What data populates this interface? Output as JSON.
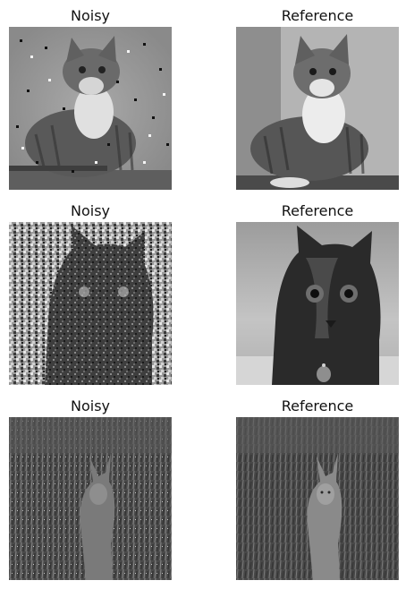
{
  "panels": [
    {
      "title": "Noisy",
      "image": "noisy-kitten-photo",
      "subject": "grey tabby kitten with white chest sitting on a ledge, salt-and-pepper noise"
    },
    {
      "title": "Reference",
      "image": "reference-kitten-photo",
      "subject": "grey tabby kitten with white chest sitting on a ledge"
    },
    {
      "title": "Noisy",
      "image": "noisy-black-cat-photo",
      "subject": "dark cat face close-up, heavy speckle noise"
    },
    {
      "title": "Reference",
      "image": "reference-black-cat-photo",
      "subject": "dark tortoiseshell cat face close-up with collar tag"
    },
    {
      "title": "Noisy",
      "image": "noisy-fawn-photo",
      "subject": "small deer sitting in grass, grain noise"
    },
    {
      "title": "Reference",
      "image": "reference-fawn-photo",
      "subject": "small deer sitting in grass"
    }
  ]
}
